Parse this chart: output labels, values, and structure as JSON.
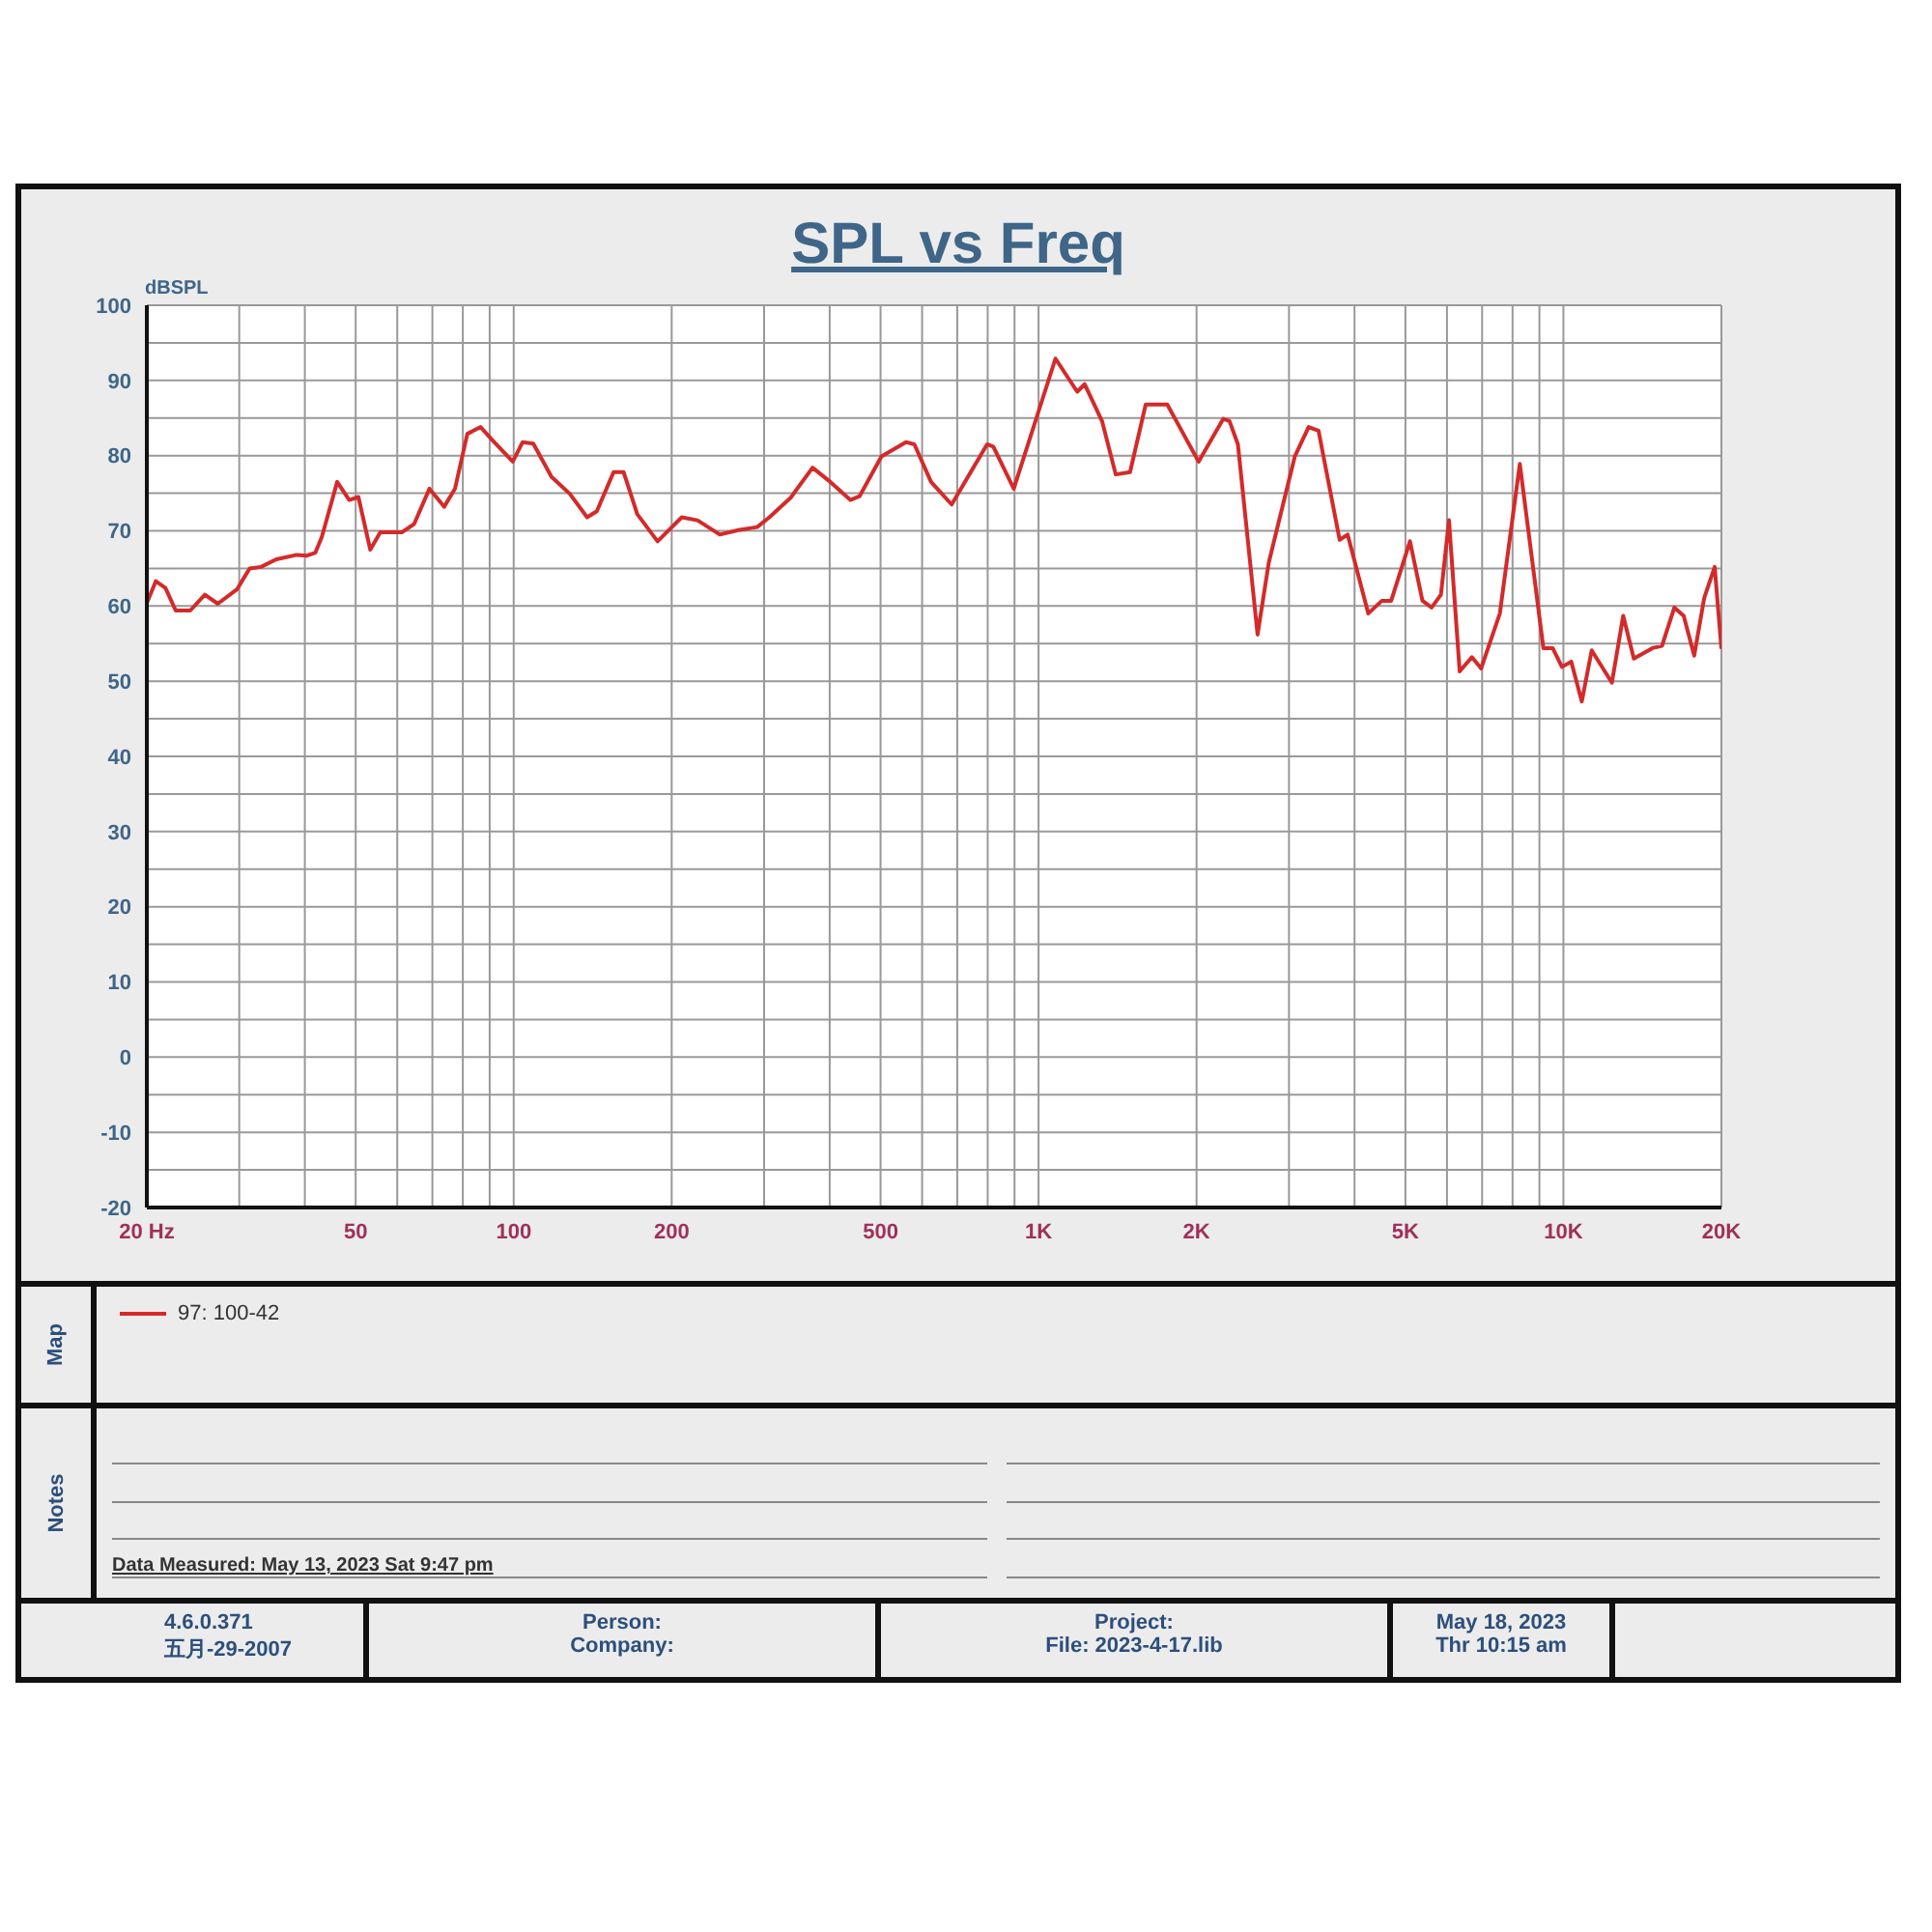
{
  "chart_data": {
    "type": "line",
    "title": "SPL vs Freq",
    "ylabel": "dBSPL",
    "xlim": [
      20,
      20000
    ],
    "ylim": [
      -20,
      100
    ],
    "log": "x",
    "grid": true,
    "legend": "bottom",
    "marker": "none",
    "line_style": "solid",
    "xticks": [
      {
        "value": 20,
        "label": "20 Hz"
      },
      {
        "value": 30,
        "label": null
      },
      {
        "value": 40,
        "label": null
      },
      50,
      {
        "value": 60,
        "label": null
      },
      {
        "value": 70,
        "label": null
      },
      {
        "value": 80,
        "label": null
      },
      {
        "value": 90,
        "label": null
      },
      100,
      200,
      {
        "value": 300,
        "label": null
      },
      {
        "value": 400,
        "label": null
      },
      500,
      {
        "value": 600,
        "label": null
      },
      {
        "value": 700,
        "label": null
      },
      {
        "value": 800,
        "label": null
      },
      {
        "value": 900,
        "label": null
      },
      {
        "value": 1000,
        "label": "1K"
      },
      {
        "value": 2000,
        "label": "2K"
      },
      {
        "value": 3000,
        "label": null
      },
      {
        "value": 4000,
        "label": null
      },
      {
        "value": 5000,
        "label": "5K"
      },
      {
        "value": 6000,
        "label": null
      },
      {
        "value": 7000,
        "label": null
      },
      {
        "value": 8000,
        "label": null
      },
      {
        "value": 9000,
        "label": null
      },
      {
        "value": 10000,
        "label": "10K"
      },
      {
        "value": 20000,
        "label": "20K"
      }
    ],
    "yticks": [
      -20,
      {
        "value": -15,
        "label": null
      },
      -10,
      {
        "value": -5,
        "label": null
      },
      0,
      {
        "value": 5,
        "label": null
      },
      10,
      {
        "value": 15,
        "label": null
      },
      20,
      {
        "value": 25,
        "label": null
      },
      30,
      {
        "value": 35,
        "label": null
      },
      40,
      {
        "value": 45,
        "label": null
      },
      50,
      {
        "value": 55,
        "label": null
      },
      60,
      {
        "value": 65,
        "label": null
      },
      70,
      {
        "value": 75,
        "label": null
      },
      80,
      {
        "value": 85,
        "label": null
      },
      90,
      {
        "value": 95,
        "label": null
      },
      100
    ],
    "series": [
      {
        "name": "97: 100-42",
        "color": "#d42a2a",
        "x": [
          20,
          20.8,
          21.7,
          22.7,
          24.2,
          25.8,
          27.3,
          29.7,
          31.4,
          33,
          35.3,
          38.6,
          40.4,
          41.9,
          43.1,
          46.1,
          48.6,
          50.6,
          53.3,
          55.7,
          61.2,
          64.6,
          69.1,
          73.7,
          77.3,
          81.6,
          86.5,
          91.8,
          99.6,
          104,
          109,
          118,
          128,
          138,
          144,
          155,
          162,
          172,
          188,
          209,
          224,
          247,
          268,
          291,
          307,
          337,
          371,
          398,
          438,
          456,
          502,
          559,
          580,
          624,
          683,
          798,
          820,
          897,
          1077,
          1185,
          1224,
          1321,
          1403,
          1494,
          1600,
          1759,
          2018,
          2249,
          2311,
          2398,
          2614,
          2746,
          3078,
          3270,
          3415,
          3747,
          3881,
          4248,
          4510,
          4698,
          5101,
          5388,
          5609,
          5843,
          6053,
          6344,
          6693,
          6971,
          7566,
          8259,
          9160,
          9539,
          9936,
          10350,
          10840,
          11320,
          12370,
          13000,
          13620,
          14780,
          15410,
          16270,
          16950,
          17750,
          18550,
          19420,
          20000
        ],
        "values": [
          60.4,
          63.3,
          62.4,
          59.4,
          59.4,
          61.5,
          60.3,
          62.2,
          65,
          65.2,
          66.2,
          66.8,
          66.7,
          67.1,
          69.2,
          76.5,
          74.1,
          74.5,
          67.5,
          69.8,
          69.8,
          70.9,
          75.6,
          73.2,
          75.6,
          82.9,
          83.8,
          81.8,
          79.2,
          81.8,
          81.6,
          77.2,
          74.9,
          71.8,
          72.6,
          77.8,
          77.8,
          72.2,
          68.6,
          71.8,
          71.4,
          69.5,
          70.1,
          70.5,
          71.8,
          74.4,
          78.4,
          76.7,
          74.1,
          74.6,
          79.9,
          81.8,
          81.5,
          76.5,
          73.5,
          81.5,
          81.2,
          75.6,
          92.9,
          88.5,
          89.5,
          84.6,
          77.5,
          77.8,
          86.8,
          86.8,
          79.2,
          84.9,
          84.6,
          81.5,
          56.2,
          65.8,
          79.9,
          83.8,
          83.3,
          68.8,
          69.5,
          59,
          60.7,
          60.7,
          68.6,
          60.7,
          59.8,
          61.5,
          71.4,
          51.3,
          53.2,
          51.7,
          59,
          78.9,
          54.4,
          54.4,
          51.9,
          52.6,
          47.3,
          54.1,
          49.8,
          58.7,
          53,
          54.4,
          54.7,
          59.8,
          58.7,
          53.4,
          61.1,
          65.2,
          54.3
        ]
      }
    ],
    "annotations": [
      "Map",
      "Notes",
      "Data Measured: May 13, 2023  Sat  9:47 pm",
      "4.6.0.371",
      "五月-29-2007",
      "Person:",
      "Company:",
      "Project:",
      "File: 2023-4-17.lib",
      "May 18, 2023",
      "Thr 10:15 am"
    ]
  }
}
